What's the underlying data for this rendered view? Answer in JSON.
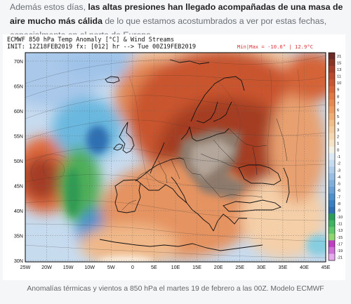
{
  "intro": {
    "lead": "Además estos días, ",
    "bold1": "las altas presiones han llegado acompañadas de una masa de aire mucho más cálida",
    "rest": " de lo que estamos acostumbrados a ver por estas fechas, especialmente en el norte de Europa."
  },
  "map": {
    "title": "ECMWF 850 hPa Temp Anomaly [°C] & Wind Streams",
    "init": "INIT: 12Z18FEB2019 fx: [012] hr --> Tue 00Z19FEB2019",
    "minmax": "Min|Max = -10.6° | 12.9°C",
    "lat_labels": [
      "70N",
      "65N",
      "60N",
      "55N",
      "50N",
      "45N",
      "40N",
      "35N",
      "30N"
    ],
    "lon_labels": [
      "25W",
      "20W",
      "15W",
      "10W",
      "5W",
      "0",
      "5E",
      "10E",
      "15E",
      "20E",
      "25E",
      "30E",
      "35E",
      "40E",
      "45E"
    ],
    "colorbar": {
      "labels": [
        "21",
        "15",
        "13",
        "11",
        "10",
        "9",
        "8",
        "7",
        "6",
        "5",
        "4",
        "3",
        "2",
        "1",
        "0",
        "-1",
        "-2",
        "-3",
        "-4",
        "-5",
        "-6",
        "-7",
        "-8",
        "-9",
        "-10",
        "-11",
        "-13",
        "-15",
        "-17",
        "-19",
        "-21"
      ],
      "colors": [
        "#6b2a24",
        "#8a3424",
        "#a53e26",
        "#bb4a2c",
        "#c95632",
        "#d6663a",
        "#df7844",
        "#e58a52",
        "#ea9c62",
        "#eead74",
        "#f1bd88",
        "#f3cb9c",
        "#f5d8b0",
        "#f7e4c6",
        "#f5f0e4",
        "#dce8f4",
        "#c8dcf0",
        "#b0cdea",
        "#98bfe3",
        "#7fb0dc",
        "#6aa1d4",
        "#4f90cc",
        "#3a7fc0",
        "#2e70b2",
        "#2a9d5a",
        "#3db560",
        "#5fc96a",
        "#8fd66e",
        "#c040c0",
        "#d070d8",
        "#e8a8ec"
      ]
    }
  },
  "caption": "Anomalías térmicas y vientos a 850 hPa el martes 19 de febrero a las 00Z. Modelo ECMWF"
}
